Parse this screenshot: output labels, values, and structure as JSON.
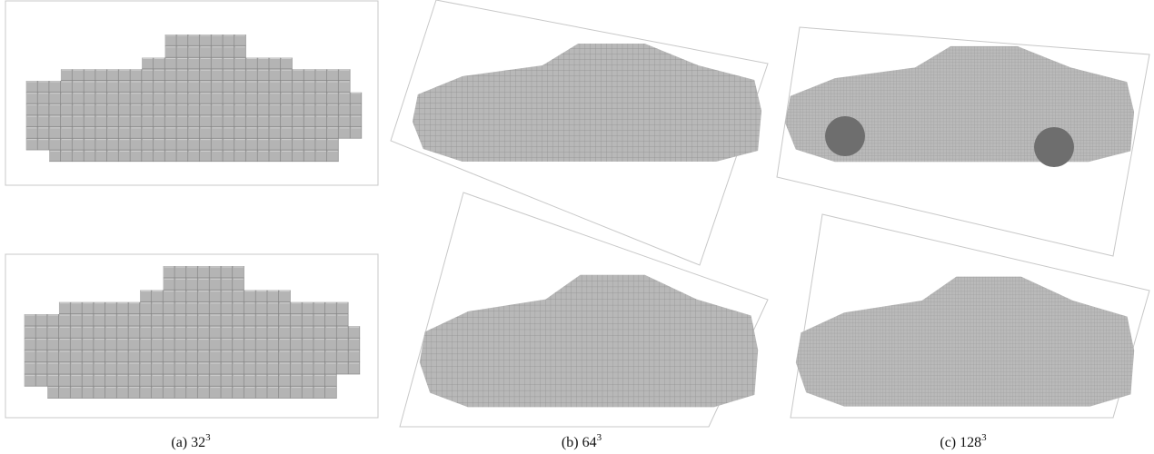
{
  "captions": [
    {
      "label": "(a)",
      "base": "32",
      "exponent": "3"
    },
    {
      "label": "(b)",
      "base": "64",
      "exponent": "3"
    },
    {
      "label": "(c)",
      "base": "128",
      "exponent": "3"
    }
  ]
}
